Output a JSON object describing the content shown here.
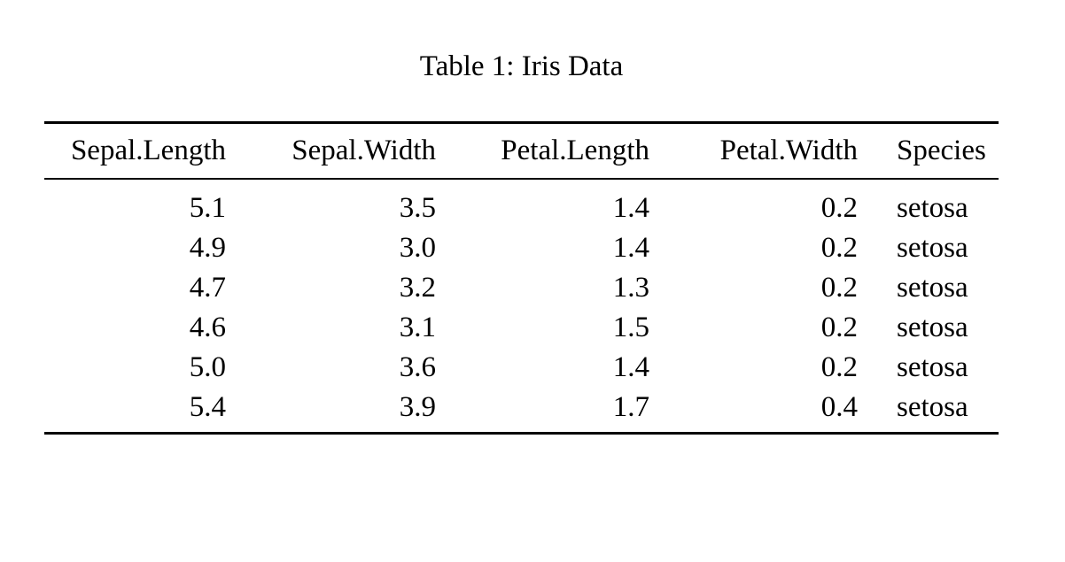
{
  "page": {
    "background": "#ffffff",
    "text_color": "#000000",
    "rule_color": "#000000"
  },
  "caption": {
    "text": "Table 1: Iris Data"
  },
  "table": {
    "columns": [
      {
        "key": "sepal-length",
        "label": "Sepal.Length",
        "align": "right"
      },
      {
        "key": "sepal-width",
        "label": "Sepal.Width",
        "align": "right"
      },
      {
        "key": "petal-length",
        "label": "Petal.Length",
        "align": "right"
      },
      {
        "key": "petal-width",
        "label": "Petal.Width",
        "align": "right"
      },
      {
        "key": "species",
        "label": "Species",
        "align": "left"
      }
    ],
    "rows": [
      [
        "5.1",
        "3.5",
        "1.4",
        "0.2",
        "setosa"
      ],
      [
        "4.9",
        "3.0",
        "1.4",
        "0.2",
        "setosa"
      ],
      [
        "4.7",
        "3.2",
        "1.3",
        "0.2",
        "setosa"
      ],
      [
        "4.6",
        "3.1",
        "1.5",
        "0.2",
        "setosa"
      ],
      [
        "5.0",
        "3.6",
        "1.4",
        "0.2",
        "setosa"
      ],
      [
        "5.4",
        "3.9",
        "1.7",
        "0.4",
        "setosa"
      ]
    ]
  }
}
